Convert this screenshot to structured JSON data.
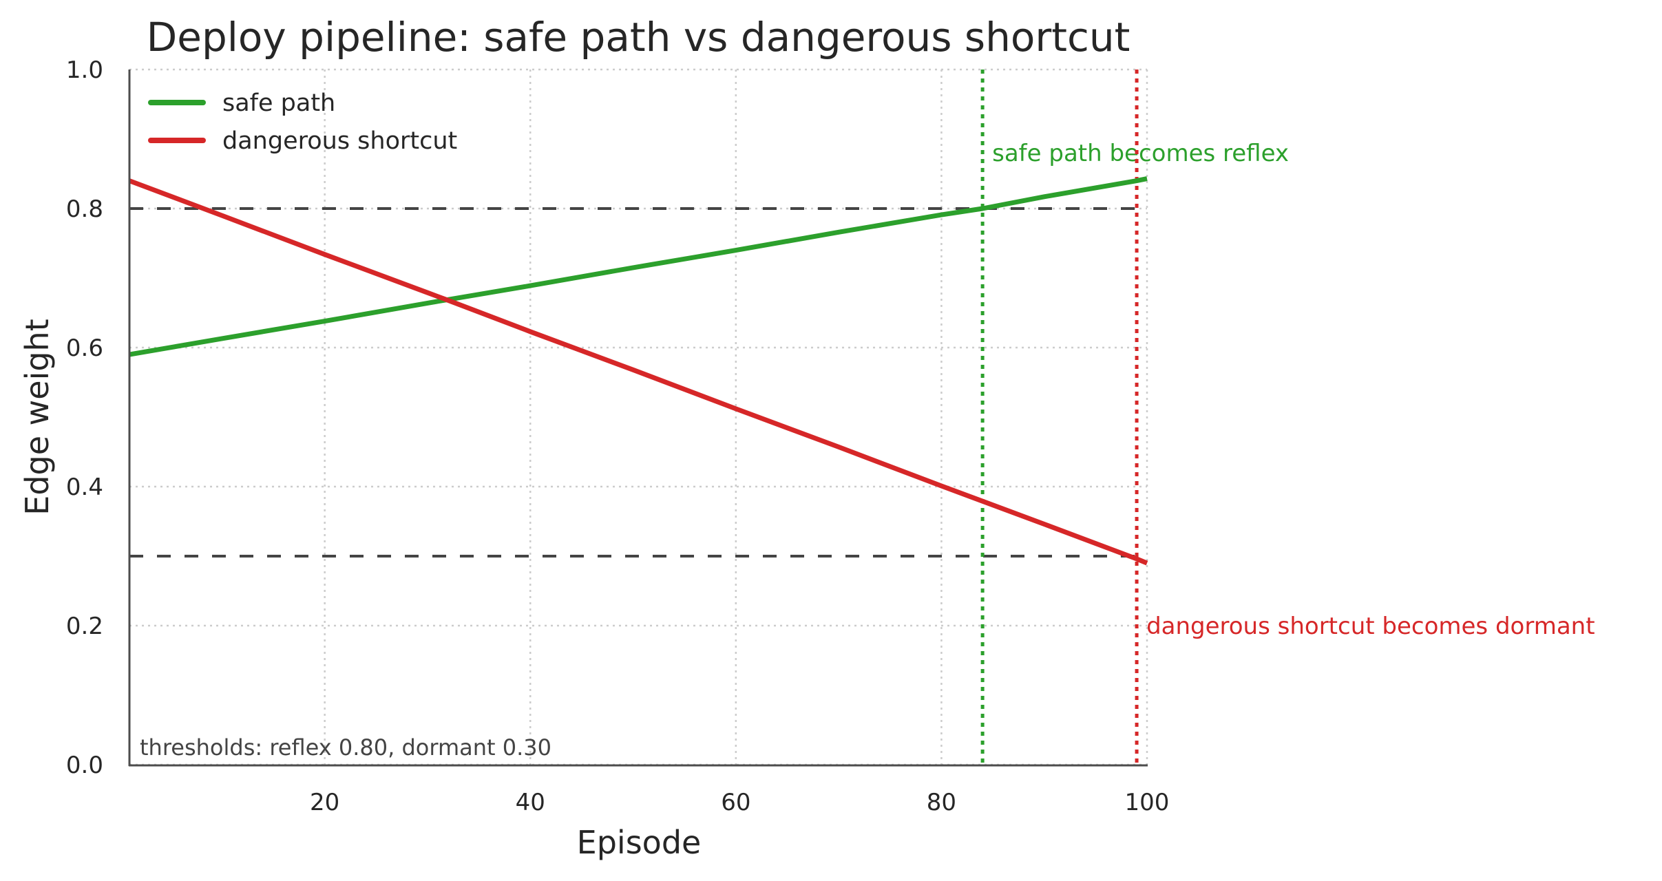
{
  "chart_data": {
    "type": "line",
    "title": "Deploy pipeline: safe path vs dangerous shortcut",
    "xlabel": "Episode",
    "ylabel": "Edge weight",
    "xlim": [
      1,
      100
    ],
    "ylim": [
      0.0,
      1.0
    ],
    "xticks": [
      20,
      40,
      60,
      80,
      100
    ],
    "xtick_labels": [
      "20",
      "40",
      "60",
      "80",
      "100"
    ],
    "yticks": [
      0.0,
      0.2,
      0.4,
      0.6,
      0.8,
      1.0
    ],
    "ytick_labels": [
      "0.0",
      "0.2",
      "0.4",
      "0.6",
      "0.8",
      "1.0"
    ],
    "grid": true,
    "legend_position": "upper left",
    "x": [
      1,
      10,
      20,
      30,
      32,
      40,
      50,
      60,
      70,
      80,
      84,
      90,
      99,
      100
    ],
    "series": [
      {
        "name": "safe path",
        "color": "#2ca02c",
        "values": [
          0.59,
          0.613,
          0.638,
          0.664,
          0.669,
          0.689,
          0.715,
          0.74,
          0.766,
          0.791,
          0.8,
          0.817,
          0.84,
          0.843
        ]
      },
      {
        "name": "dangerous shortcut",
        "color": "#d62728",
        "values": [
          0.84,
          0.79,
          0.734,
          0.679,
          0.668,
          0.623,
          0.568,
          0.512,
          0.457,
          0.401,
          0.379,
          0.346,
          0.296,
          0.29
        ]
      }
    ],
    "thresholds": [
      {
        "name": "reflex",
        "value": 0.8,
        "style": "dashed",
        "color": "#444444"
      },
      {
        "name": "dormant",
        "value": 0.3,
        "style": "dashed",
        "color": "#444444"
      }
    ],
    "events": [
      {
        "episode": 84,
        "color": "#2ca02c",
        "style": "dotted",
        "label": "safe path becomes reflex",
        "label_y": 0.88
      },
      {
        "episode": 99,
        "color": "#d62728",
        "style": "dotted",
        "label": "dangerous shortcut becomes dormant",
        "label_y": 0.2
      }
    ],
    "annotations": [
      {
        "text": "thresholds: reflex 0.80, dormant 0.30",
        "position": "lower left"
      }
    ]
  }
}
